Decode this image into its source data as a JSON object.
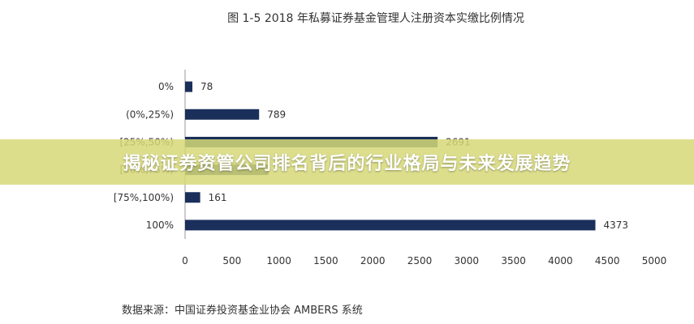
{
  "colors": {
    "bar": "#1a2f5a",
    "axis": "#9a9a9a",
    "banner_bg": "#d6d878"
  },
  "chart_data": {
    "type": "bar",
    "orientation": "horizontal",
    "title": "图 1-5 2018 年私募证券基金管理人注册资本实缴比例情况",
    "categories": [
      "0%",
      "(0%,25%)",
      "[25%,50%)",
      "[50%,75%)",
      "[75%,100%)",
      "100%"
    ],
    "values": [
      78,
      789,
      2691,
      889,
      161,
      4373
    ],
    "value_labels": [
      "78",
      "789",
      "2691",
      "",
      "161",
      "4373"
    ],
    "xlim": [
      0,
      5000
    ],
    "xticks": [
      "0",
      "500",
      "1000",
      "1500",
      "2000",
      "2500",
      "3000",
      "3500",
      "4000",
      "4500",
      "5000"
    ],
    "grid": false,
    "legend": "none",
    "source": "数据来源：中国证券投资基金业协会 AMBERS 系统"
  },
  "banner": {
    "text": "揭秘证券资管公司排名背后的行业格局与未来发展趋势"
  }
}
